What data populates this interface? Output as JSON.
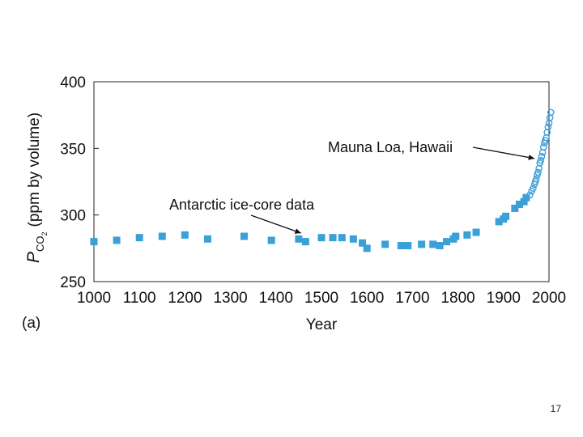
{
  "panel_label": "(a)",
  "page_number": "17",
  "chart_data": {
    "type": "scatter",
    "xlabel": "Year",
    "ylabel": {
      "symbol": "P",
      "subscript": "CO",
      "sub_subscript": "2",
      "units": "(ppm by volume)"
    },
    "xlim": [
      1000,
      2000
    ],
    "ylim": [
      250,
      400
    ],
    "x_ticks": [
      "1000",
      "1100",
      "1200",
      "1300",
      "1400",
      "1500",
      "1600",
      "1700",
      "1800",
      "1900",
      "2000"
    ],
    "y_ticks": [
      "250",
      "300",
      "350",
      "400"
    ],
    "grid": false,
    "colors": {
      "marker": "#3b9fd8"
    },
    "series": [
      {
        "name": "Antarctic ice-core data",
        "marker": "square",
        "points": [
          [
            1000,
            280
          ],
          [
            1050,
            281
          ],
          [
            1100,
            283
          ],
          [
            1150,
            284
          ],
          [
            1200,
            285
          ],
          [
            1250,
            282
          ],
          [
            1330,
            284
          ],
          [
            1390,
            281
          ],
          [
            1450,
            282
          ],
          [
            1465,
            280
          ],
          [
            1500,
            283
          ],
          [
            1525,
            283
          ],
          [
            1545,
            283
          ],
          [
            1570,
            282
          ],
          [
            1590,
            279
          ],
          [
            1600,
            275
          ],
          [
            1640,
            278
          ],
          [
            1675,
            277
          ],
          [
            1690,
            277
          ],
          [
            1720,
            278
          ],
          [
            1745,
            278
          ],
          [
            1760,
            277
          ],
          [
            1775,
            280
          ],
          [
            1790,
            282
          ],
          [
            1795,
            284
          ],
          [
            1820,
            285
          ],
          [
            1840,
            287
          ],
          [
            1890,
            295
          ],
          [
            1900,
            297
          ],
          [
            1905,
            299
          ],
          [
            1925,
            305
          ],
          [
            1935,
            308
          ],
          [
            1945,
            310
          ],
          [
            1950,
            313
          ]
        ]
      },
      {
        "name": "Mauna Loa, Hawaii",
        "marker": "circle",
        "points": [
          [
            1958,
            315
          ],
          [
            1962,
            318
          ],
          [
            1965,
            320
          ],
          [
            1968,
            323
          ],
          [
            1970,
            325
          ],
          [
            1972,
            327
          ],
          [
            1974,
            330
          ],
          [
            1976,
            332
          ],
          [
            1978,
            335
          ],
          [
            1980,
            339
          ],
          [
            1982,
            341
          ],
          [
            1984,
            344
          ],
          [
            1986,
            347
          ],
          [
            1988,
            351
          ],
          [
            1990,
            354
          ],
          [
            1992,
            356
          ],
          [
            1994,
            358
          ],
          [
            1996,
            362
          ],
          [
            1998,
            366
          ],
          [
            2000,
            369
          ],
          [
            2002,
            373
          ],
          [
            2004,
            377
          ]
        ]
      }
    ],
    "annotations": [
      {
        "text": "Antarctic ice-core data",
        "target_x": 1455,
        "target_y": 284
      },
      {
        "text": "Mauna Loa, Hawaii",
        "target_x": 1968,
        "target_y": 340
      }
    ]
  }
}
